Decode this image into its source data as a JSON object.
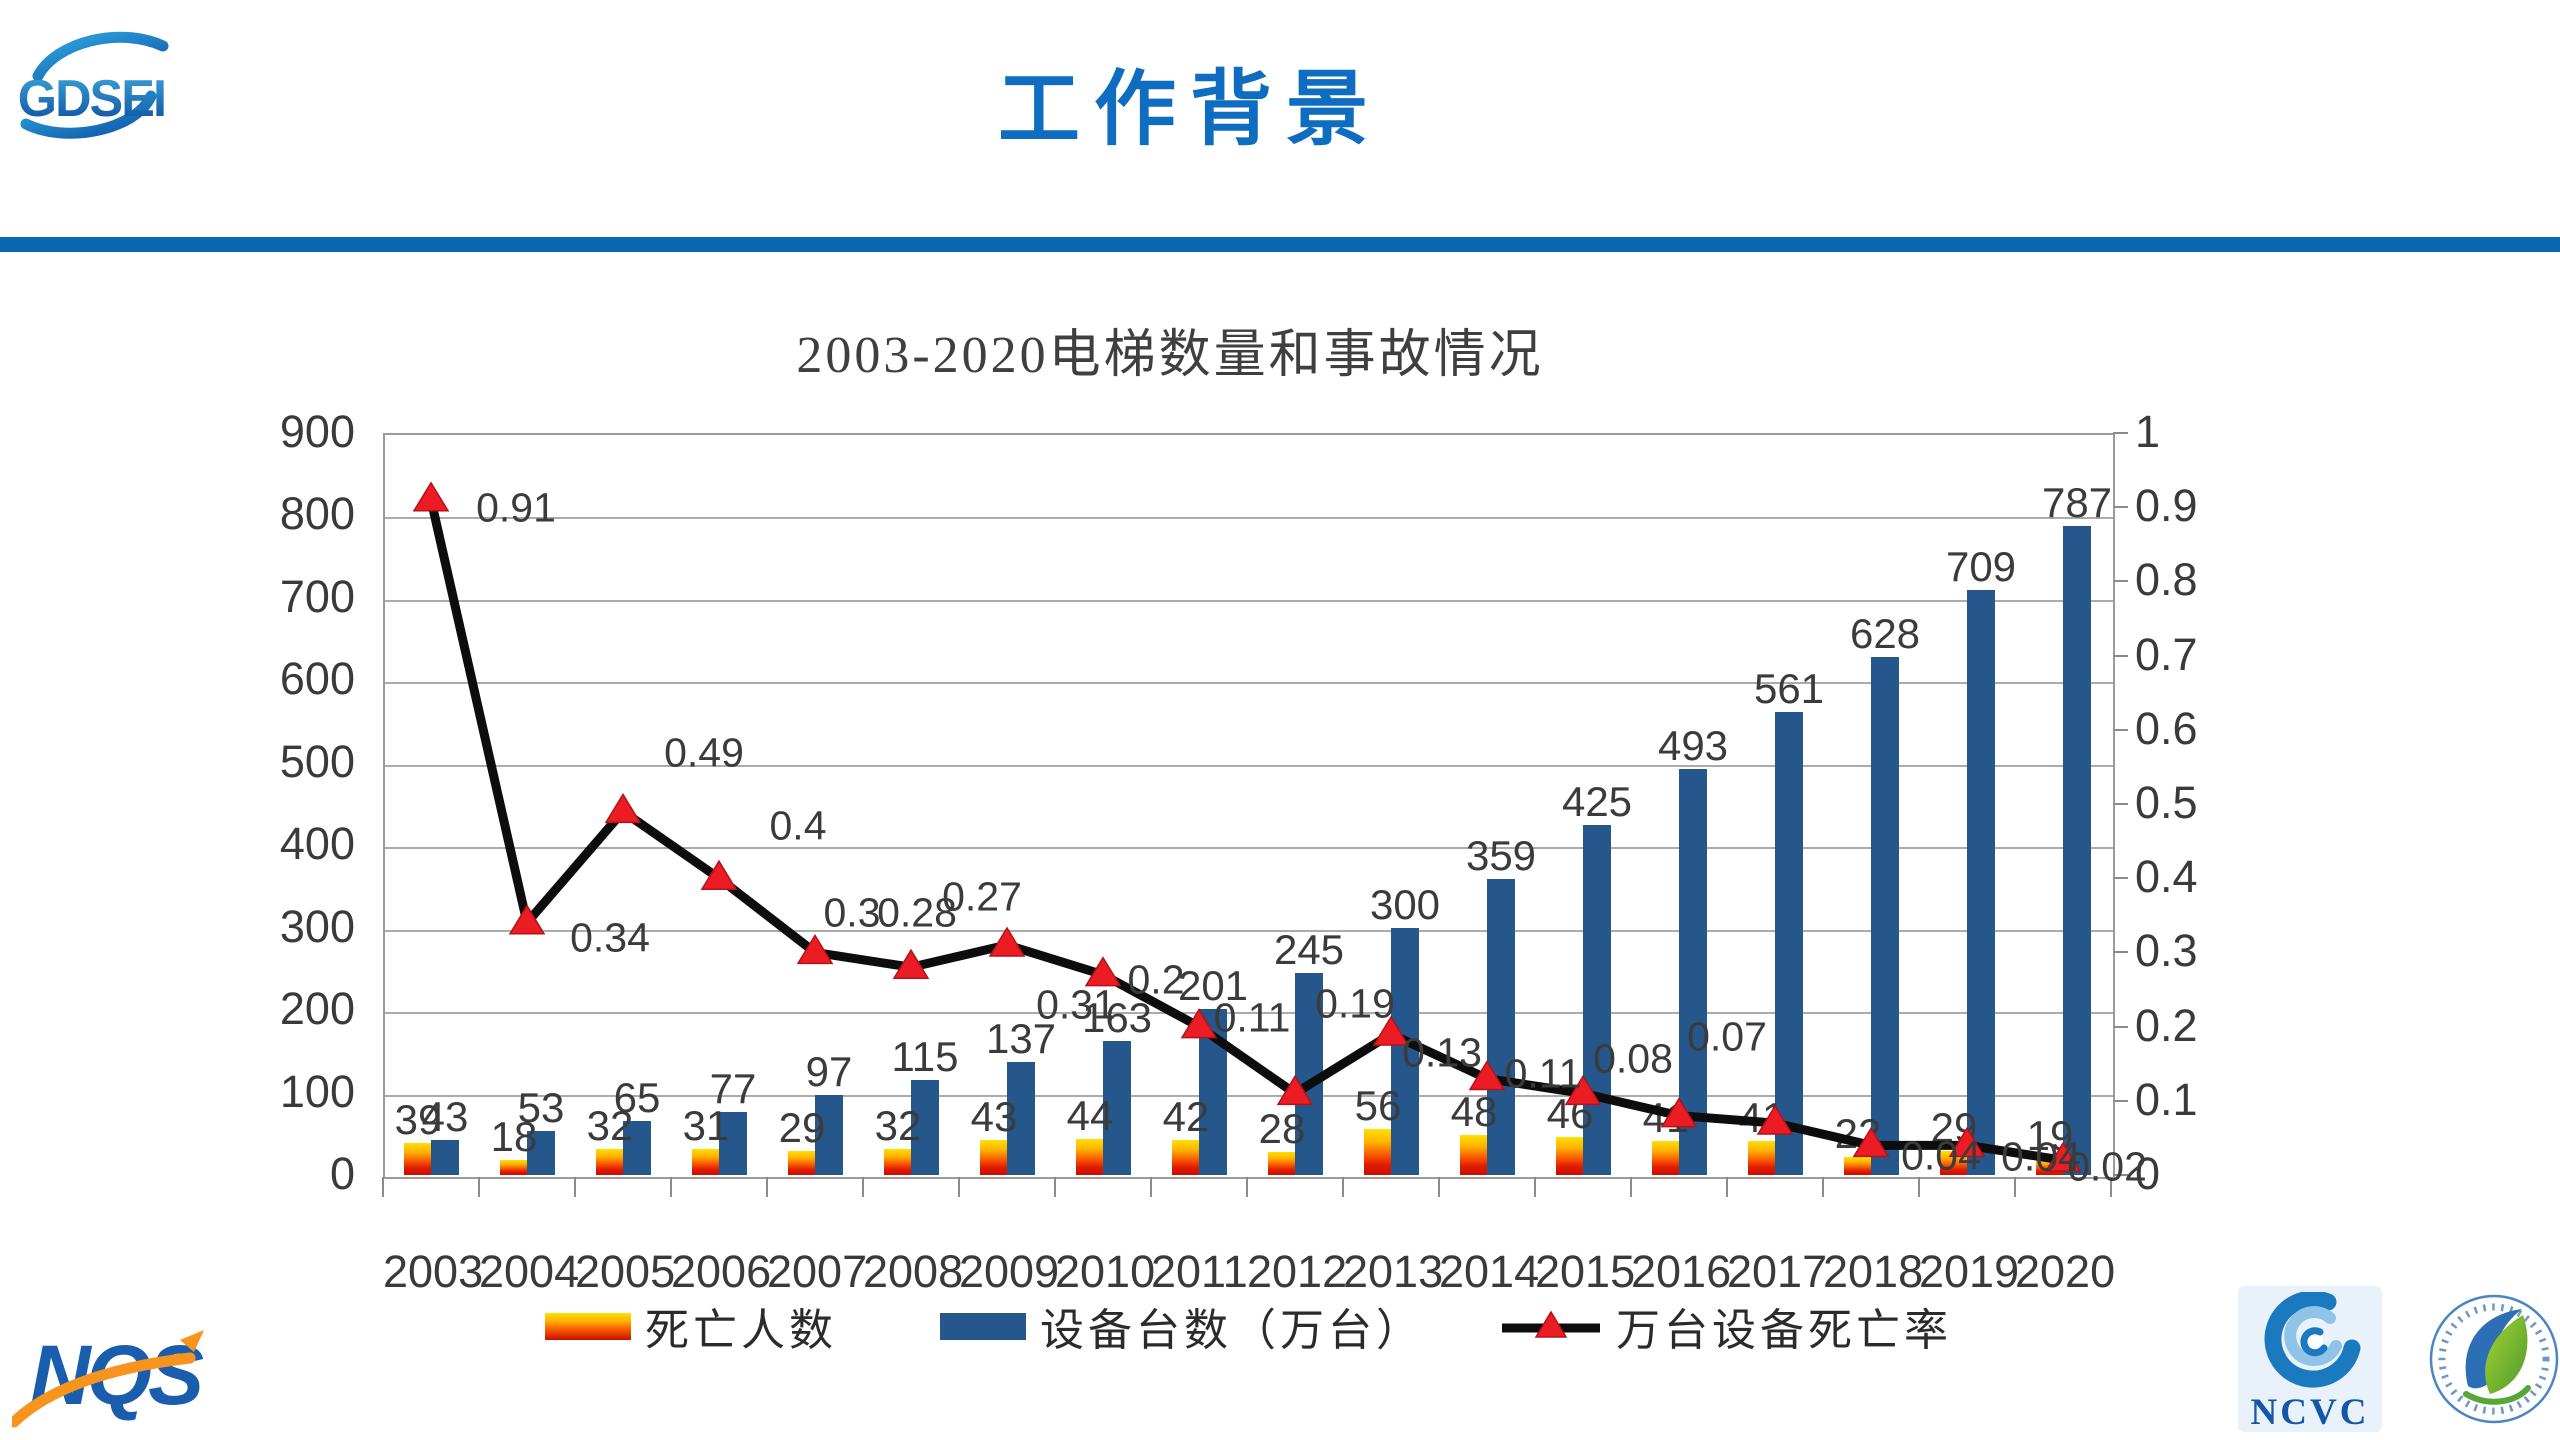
{
  "slide": {
    "title": "工作背景"
  },
  "header": {
    "logo_text": "GDSEI"
  },
  "footer": {
    "nqs_logo_text": "NQS",
    "ncvc_logo_text": "NCVC"
  },
  "colors": {
    "header_blue": "#0f6dc1",
    "rule_blue": "#0966b0",
    "bar_blue": "#26578c",
    "death_gradient_top": "#ffdf00",
    "death_gradient_mid": "#f95d00",
    "death_gradient_bottom": "#c70f00",
    "line_black": "#0d0d0d",
    "marker_red": "#ec1c24",
    "grid_gray": "#ababab",
    "text_dark": "#3f3f3f"
  },
  "chart_data": {
    "type": "bar",
    "subtype": "combo bar+line, dual axis",
    "title": "2003-2020电梯数量和事故情况",
    "categories": [
      "2003",
      "2004",
      "2005",
      "2006",
      "2007",
      "2008",
      "2009",
      "2010",
      "2011",
      "2012",
      "2013",
      "2014",
      "2015",
      "2016",
      "2017",
      "2018",
      "2019",
      "2020"
    ],
    "series": [
      {
        "name": "死亡人数",
        "type": "bar",
        "axis": "left",
        "values": [
          39,
          18,
          32,
          31,
          29,
          32,
          43,
          44,
          42,
          28,
          56,
          48,
          46,
          41,
          41,
          22,
          29,
          19
        ]
      },
      {
        "name": "设备台数（万台）",
        "type": "bar",
        "axis": "left",
        "values": [
          43,
          53,
          65,
          77,
          97,
          115,
          137,
          163,
          201,
          245,
          300,
          359,
          425,
          493,
          561,
          628,
          709,
          787
        ]
      },
      {
        "name": "万台设备死亡率",
        "type": "line",
        "axis": "right",
        "values": [
          0.91,
          0.34,
          0.49,
          0.4,
          0.3,
          0.28,
          0.31,
          0.27,
          0.2,
          0.11,
          0.19,
          0.13,
          0.11,
          0.08,
          0.07,
          0.04,
          0.04,
          0.02
        ],
        "labels": [
          "0.91",
          "0.34",
          "0.49",
          "0.4",
          "0.3",
          "0.28",
          "0.31",
          "0.27",
          "0.2",
          "0.11",
          "0.19",
          "0.13",
          "0.11",
          "0.08",
          "0.07",
          "0.04",
          "0.04",
          "0.02"
        ]
      }
    ],
    "left_axis": {
      "min": 0,
      "max": 900,
      "step": 100,
      "labels": [
        "0",
        "100",
        "200",
        "300",
        "400",
        "500",
        "600",
        "700",
        "800",
        "900"
      ]
    },
    "right_axis": {
      "min": 0,
      "max": 1,
      "step": 0.1,
      "labels": [
        "0",
        "0.1",
        "0.2",
        "0.3",
        "0.4",
        "0.5",
        "0.6",
        "0.7",
        "0.8",
        "0.9",
        "1"
      ]
    },
    "grid": "horizontal gridlines every 100 (left axis)",
    "legend_position": "bottom"
  }
}
